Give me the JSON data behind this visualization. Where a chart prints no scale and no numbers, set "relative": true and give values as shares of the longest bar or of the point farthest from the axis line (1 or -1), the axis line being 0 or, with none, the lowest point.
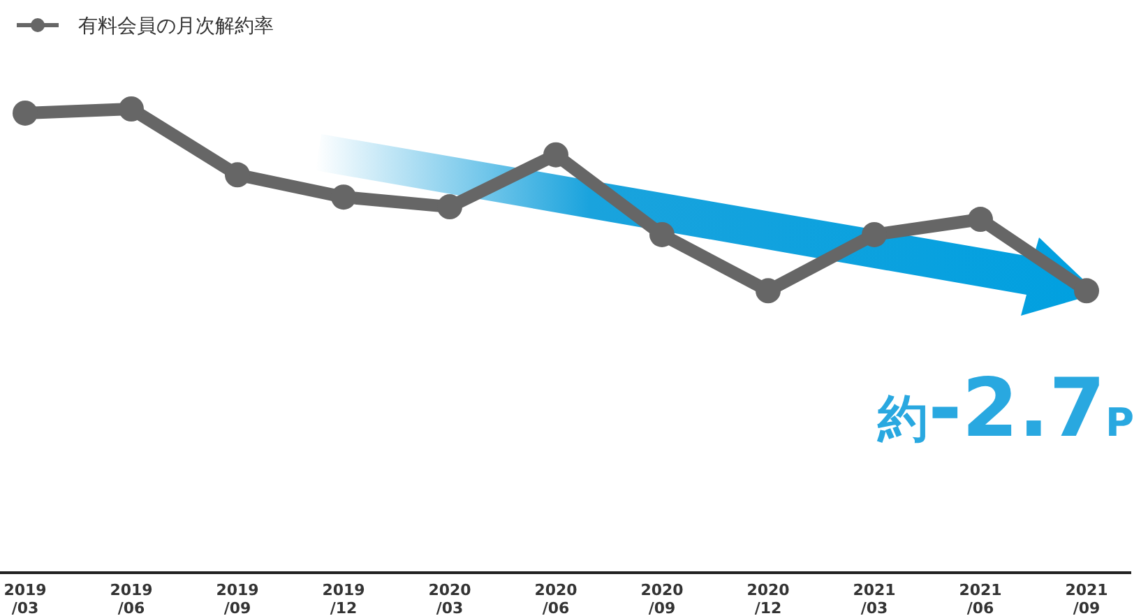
{
  "chart_data": {
    "type": "line",
    "relative": true,
    "marker": "circle",
    "legend": "top left",
    "categories": [
      "2019/03",
      "2019/06",
      "2019/09",
      "2019/12",
      "2020/03",
      "2020/06",
      "2020/09",
      "2020/12",
      "2021/03",
      "2021/06",
      "2021/09"
    ],
    "series": [
      {
        "name": "有料会員の月次解約率",
        "color": "#666666",
        "values": [
          0.991,
          1,
          0.858,
          0.81,
          0.789,
          0.901,
          0.729,
          0.608,
          0.729,
          0.762,
          0.608
        ]
      }
    ],
    "annotations": [
      "約-2.7P"
    ]
  }
}
